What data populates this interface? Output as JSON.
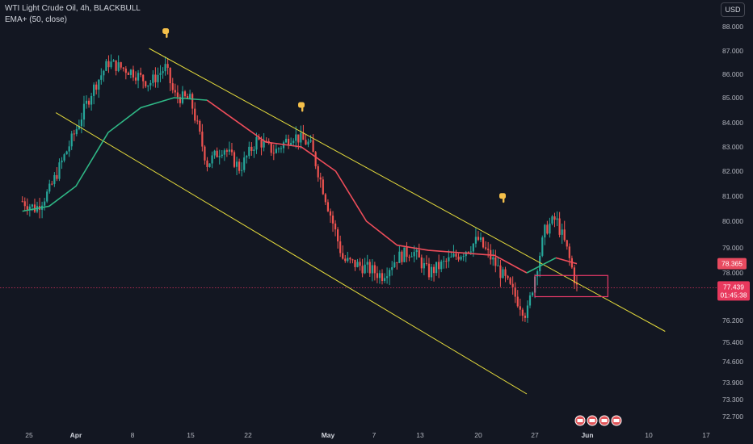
{
  "header": {
    "title": "WTI Light Crude Oil, 4h, BLACKBULL",
    "indicator": "EMA+ (50, close)"
  },
  "currency_button": "USD",
  "colors": {
    "background": "#131722",
    "up": "#26a69a",
    "down": "#ef5350",
    "ema_up": "#2fb886",
    "ema_down": "#ef4d5a",
    "channel": "#e6dc3c",
    "zone": "#ea3b6a",
    "price_line": "#d8325c"
  },
  "icons": [
    "pointing-finger-icon",
    "pointing-finger-icon",
    "pointing-finger-icon",
    "event-flag-icon"
  ],
  "chart_data": {
    "type": "candlestick",
    "symbol": "WTI Light Crude Oil",
    "timeframe": "4h",
    "y_ticks": [
      "88.000",
      "87.000",
      "86.000",
      "85.000",
      "84.000",
      "83.000",
      "82.000",
      "81.000",
      "80.000",
      "79.000",
      "78.000",
      "76.200",
      "75.400",
      "74.600",
      "73.900",
      "73.300",
      "72.700"
    ],
    "x_ticks": [
      {
        "label": "25",
        "bold": false
      },
      {
        "label": "Apr",
        "bold": true
      },
      {
        "label": "8",
        "bold": false
      },
      {
        "label": "15",
        "bold": false
      },
      {
        "label": "22",
        "bold": false
      },
      {
        "label": "May",
        "bold": true
      },
      {
        "label": "7",
        "bold": false
      },
      {
        "label": "13",
        "bold": false
      },
      {
        "label": "20",
        "bold": false
      },
      {
        "label": "27",
        "bold": false
      },
      {
        "label": "Jun",
        "bold": true
      },
      {
        "label": "10",
        "bold": false
      },
      {
        "label": "17",
        "bold": false
      }
    ],
    "ema_label": "78.365",
    "last_price": "77.439",
    "countdown": "01:45:38",
    "price_path": [
      {
        "date": "Mar 24",
        "price": 80.8
      },
      {
        "date": "Mar 26",
        "price": 80.5
      },
      {
        "date": "Mar 28",
        "price": 81.2
      },
      {
        "date": "Apr 1",
        "price": 83.7
      },
      {
        "date": "Apr 3",
        "price": 85.3
      },
      {
        "date": "Apr 5",
        "price": 86.5
      },
      {
        "date": "Apr 8",
        "price": 86.1
      },
      {
        "date": "Apr 10",
        "price": 85.6
      },
      {
        "date": "Apr 12",
        "price": 86.3
      },
      {
        "date": "Apr 13",
        "price": 85.1
      },
      {
        "date": "Apr 15",
        "price": 84.9
      },
      {
        "date": "Apr 17",
        "price": 82.3
      },
      {
        "date": "Apr 19",
        "price": 83.0
      },
      {
        "date": "Apr 21",
        "price": 82.1
      },
      {
        "date": "Apr 23",
        "price": 83.3
      },
      {
        "date": "Apr 25",
        "price": 82.8
      },
      {
        "date": "Apr 27",
        "price": 83.5
      },
      {
        "date": "Apr 29",
        "price": 83.1
      },
      {
        "date": "May 1",
        "price": 80.6
      },
      {
        "date": "May 3",
        "price": 78.5
      },
      {
        "date": "May 6",
        "price": 78.2
      },
      {
        "date": "May 8",
        "price": 77.9
      },
      {
        "date": "May 10",
        "price": 78.6
      },
      {
        "date": "May 12",
        "price": 78.9
      },
      {
        "date": "May 14",
        "price": 78.0
      },
      {
        "date": "May 16",
        "price": 78.4
      },
      {
        "date": "May 18",
        "price": 78.8
      },
      {
        "date": "May 20",
        "price": 79.3
      },
      {
        "date": "May 22",
        "price": 78.4
      },
      {
        "date": "May 24",
        "price": 77.4
      },
      {
        "date": "May 26",
        "price": 76.4
      },
      {
        "date": "May 27",
        "price": 77.9
      },
      {
        "date": "May 28",
        "price": 79.7
      },
      {
        "date": "May 29",
        "price": 80.1
      },
      {
        "date": "May 30",
        "price": 79.0
      },
      {
        "date": "May 31",
        "price": 77.44
      }
    ],
    "ema_path": [
      {
        "date": "Mar 24",
        "price": 80.4
      },
      {
        "date": "Mar 28",
        "price": 80.6
      },
      {
        "date": "Apr 1",
        "price": 81.4
      },
      {
        "date": "Apr 5",
        "price": 83.6
      },
      {
        "date": "Apr 9",
        "price": 84.6
      },
      {
        "date": "Apr 13",
        "price": 85.0
      },
      {
        "date": "Apr 17",
        "price": 84.9
      },
      {
        "date": "Apr 20",
        "price": 84.2
      },
      {
        "date": "Apr 24",
        "price": 83.2
      },
      {
        "date": "Apr 28",
        "price": 83.0
      },
      {
        "date": "May 2",
        "price": 82.0
      },
      {
        "date": "May 6",
        "price": 80.0
      },
      {
        "date": "May 10",
        "price": 79.1
      },
      {
        "date": "May 14",
        "price": 78.9
      },
      {
        "date": "May 18",
        "price": 78.8
      },
      {
        "date": "May 22",
        "price": 78.7
      },
      {
        "date": "May 26",
        "price": 78.0
      },
      {
        "date": "May 29",
        "price": 78.6
      },
      {
        "date": "May 31",
        "price": 78.365
      }
    ],
    "channel_upper": [
      {
        "date": "Apr 10",
        "price": 87.1
      },
      {
        "date": "Jun 12",
        "price": 75.8
      }
    ],
    "channel_lower": [
      {
        "date": "Mar 29",
        "price": 84.4
      },
      {
        "date": "May 26",
        "price": 73.5
      }
    ],
    "demand_zone": {
      "from": "May 27",
      "to": "Jun 4",
      "top": 77.9,
      "bottom": 77.1
    },
    "markers": [
      {
        "date": "Apr 12",
        "price": 87.6
      },
      {
        "date": "Apr 28",
        "price": 84.5
      },
      {
        "date": "May 23",
        "price": 80.8
      }
    ]
  }
}
